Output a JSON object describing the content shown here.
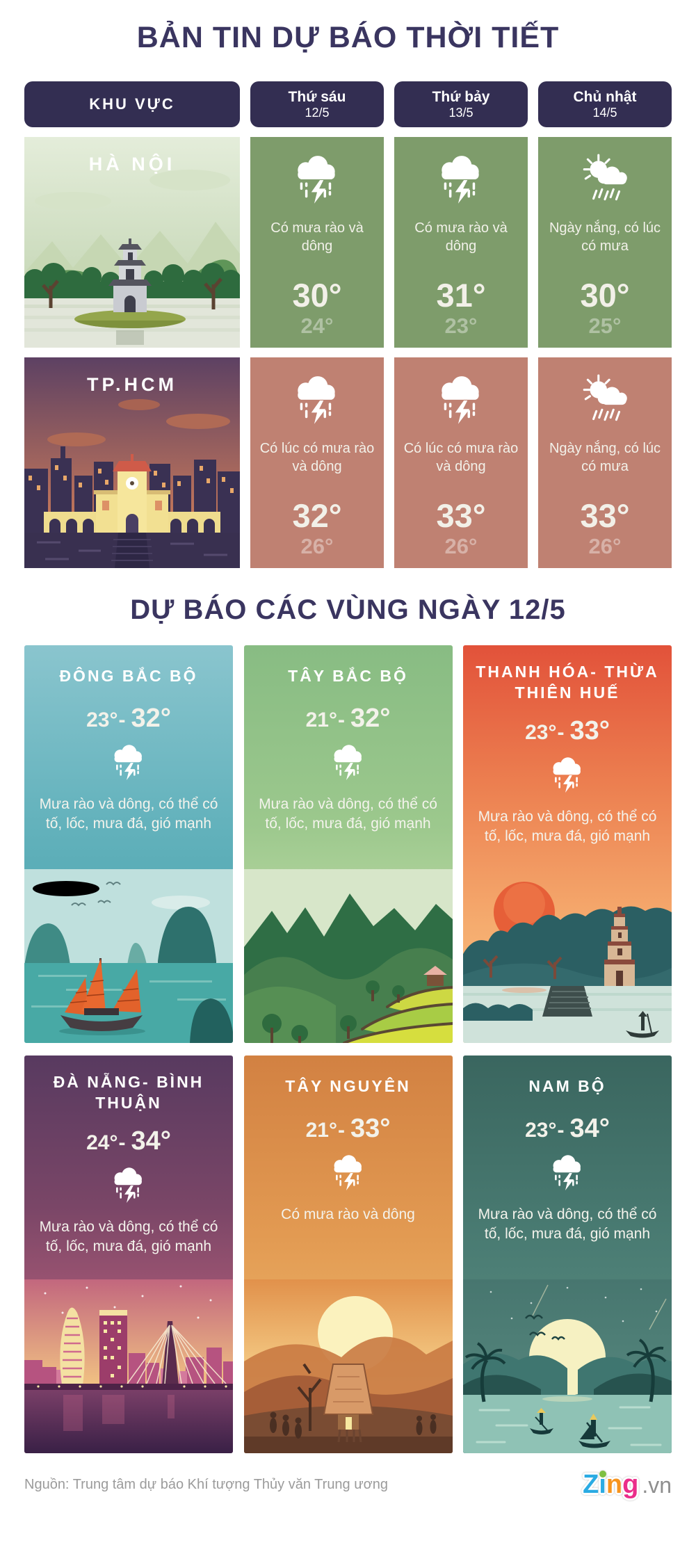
{
  "header": {
    "title": "BẢN TIN DỰ BÁO THỜI TIẾT"
  },
  "table": {
    "columns": [
      {
        "label": "KHU VỰC",
        "date": ""
      },
      {
        "label": "Thứ sáu",
        "date": "12/5"
      },
      {
        "label": "Thứ bảy",
        "date": "13/5"
      },
      {
        "label": "Chủ nhật",
        "date": "14/5"
      }
    ],
    "rows": [
      {
        "region": "HÀ NỘI",
        "days": [
          {
            "icon": "storm",
            "desc": "Có mưa rào và dông",
            "high": "30°",
            "low": "24°"
          },
          {
            "icon": "storm",
            "desc": "Có mưa rào và dông",
            "high": "31°",
            "low": "23°"
          },
          {
            "icon": "sunrain",
            "desc": "Ngày nắng, có lúc có mưa",
            "high": "30°",
            "low": "25°"
          }
        ]
      },
      {
        "region": "TP.HCM",
        "days": [
          {
            "icon": "storm",
            "desc": "Có lúc có mưa rào và dông",
            "high": "32°",
            "low": "26°"
          },
          {
            "icon": "storm",
            "desc": "Có lúc có mưa rào và dông",
            "high": "33°",
            "low": "26°"
          },
          {
            "icon": "sunrain",
            "desc": "Ngày nắng, có lúc có mưa",
            "high": "33°",
            "low": "26°"
          }
        ]
      }
    ]
  },
  "section": {
    "title": "DỰ BÁO CÁC VÙNG NGÀY 12/5"
  },
  "range_separator": "-",
  "regions": [
    {
      "name": "ĐÔNG BẮC BỘ",
      "low": "23°",
      "high": "32°",
      "icon": "storm",
      "desc": "Mưa rào và dông, có thể có tố, lốc, mưa đá, gió mạnh"
    },
    {
      "name": "TÂY BẮC BỘ",
      "low": "21°",
      "high": "32°",
      "icon": "storm",
      "desc": "Mưa rào và dông, có thể có tố, lốc, mưa đá, gió mạnh"
    },
    {
      "name": "THANH HÓA- THỪA THIÊN HUẾ",
      "low": "23°",
      "high": "33°",
      "icon": "storm",
      "desc": "Mưa rào và dông, có thể có tố, lốc, mưa đá, gió mạnh"
    },
    {
      "name": "ĐÀ NẴNG- BÌNH THUẬN",
      "low": "24°",
      "high": "34°",
      "icon": "storm",
      "desc": "Mưa rào và dông, có thể có tố, lốc, mưa đá, gió mạnh"
    },
    {
      "name": "TÂY NGUYÊN",
      "low": "21°",
      "high": "33°",
      "icon": "storm",
      "desc": "Có mưa rào và dông"
    },
    {
      "name": "NAM BỘ",
      "low": "23°",
      "high": "34°",
      "icon": "storm",
      "desc": "Mưa rào và dông, có thể có tố, lốc, mưa đá, gió mạnh"
    }
  ],
  "footer": {
    "source": "Nguồn: Trung tâm dự báo Khí tượng Thủy văn Trung ương",
    "logo_z": "Z",
    "logo_i": "i",
    "logo_n": "n",
    "logo_g": "g",
    "logo_vn": ".vn"
  },
  "colors": {
    "accent_navy": "#332e52",
    "title_navy": "#3a3560",
    "hanoi_cell_green": "#7e9c6b",
    "hcm_cell_salmon": "#bf8172",
    "logo_blue": "#2aabe3",
    "logo_green": "#7ec043",
    "logo_orange": "#f7941e",
    "logo_pink": "#eb2d8a"
  }
}
